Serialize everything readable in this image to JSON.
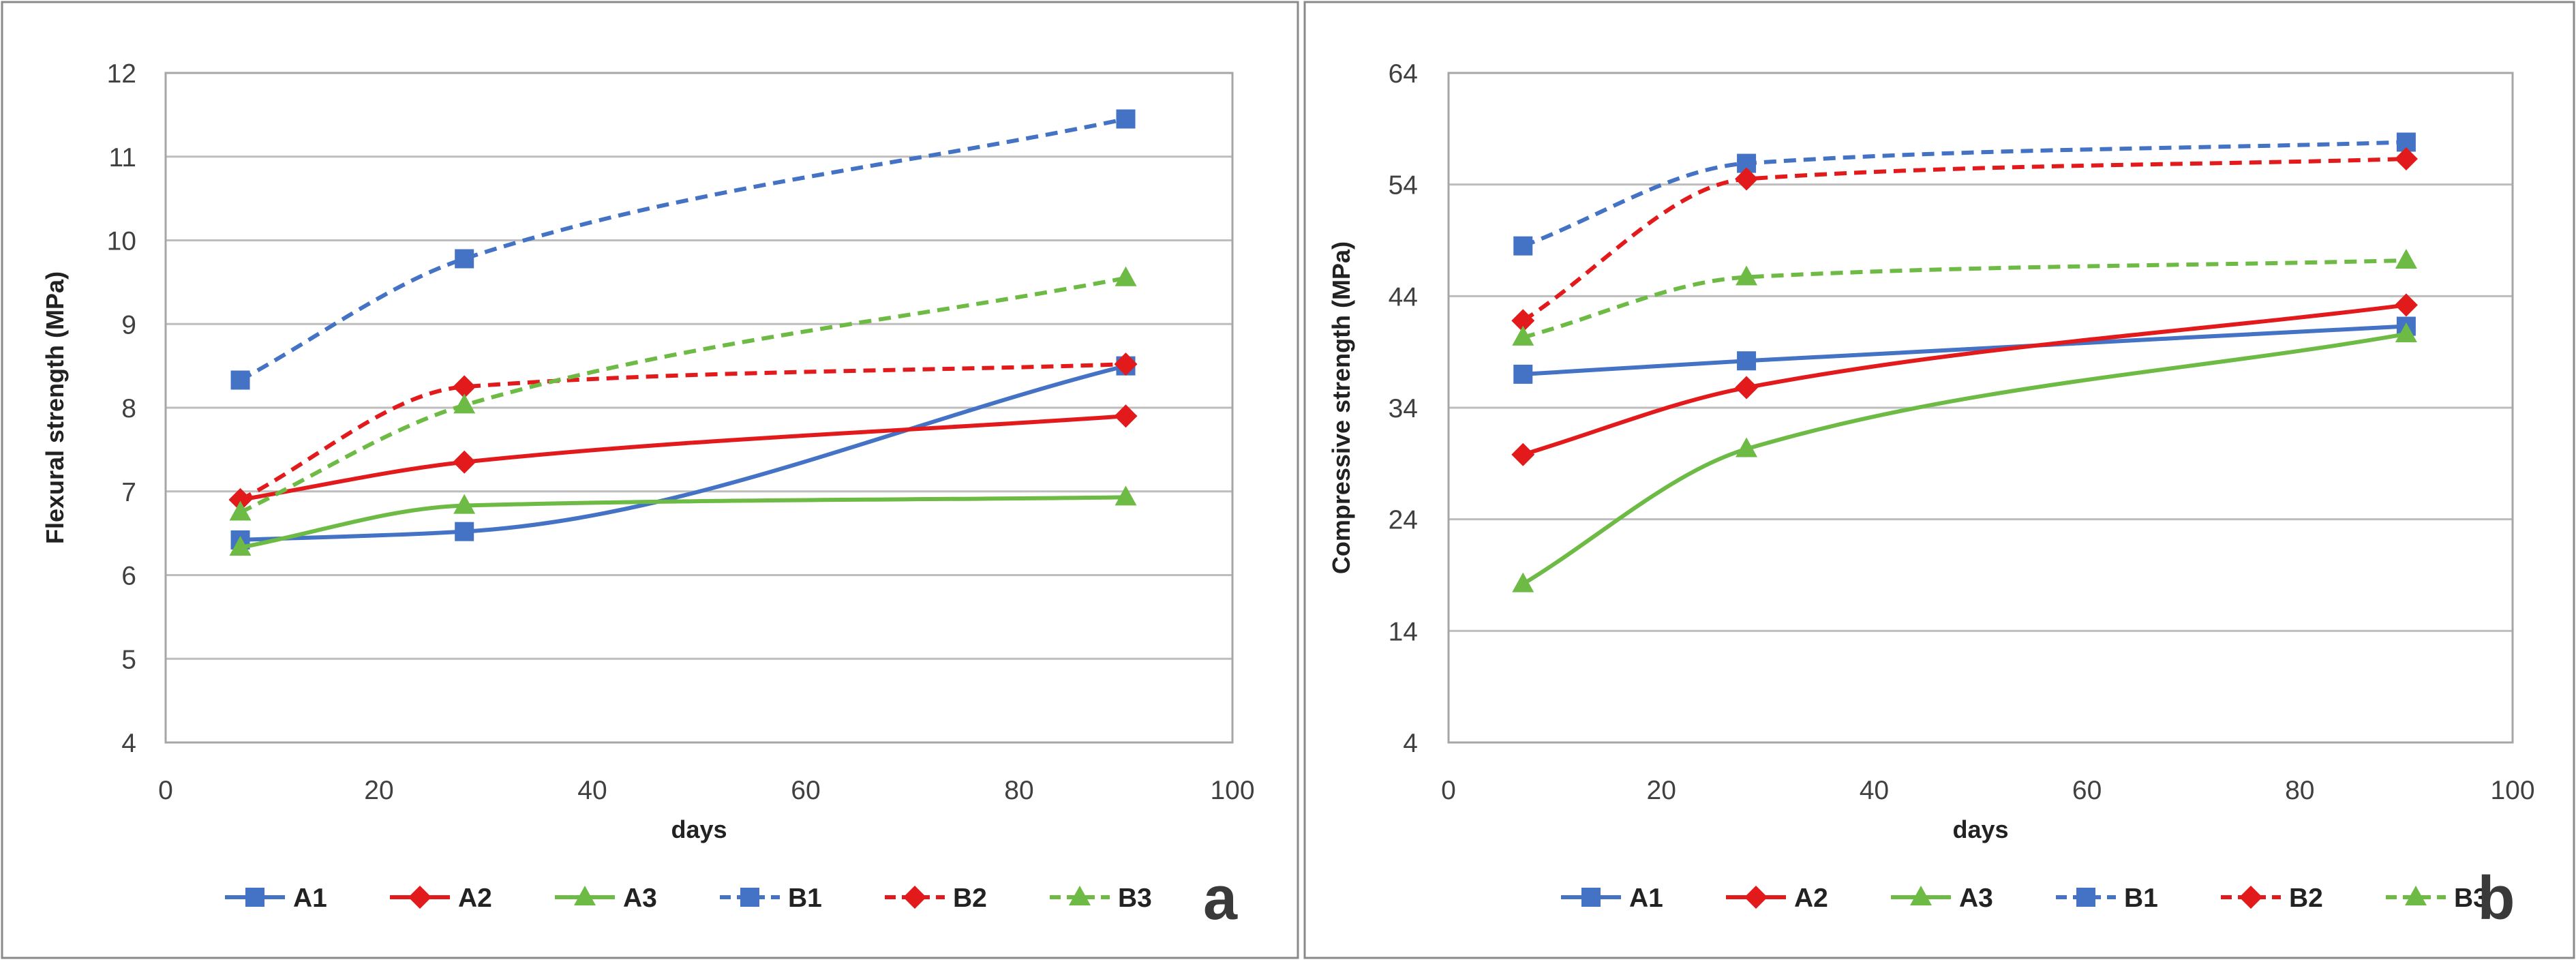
{
  "colors": {
    "blue": "#4472C4",
    "red": "#E31A1C",
    "green": "#6DBB45"
  },
  "chart_data": [
    {
      "type": "line",
      "panel": "a",
      "title": "",
      "xlabel": "days",
      "ylabel": "Flexural strength (MPa)",
      "xlim": [
        0,
        100
      ],
      "ylim": [
        4,
        12
      ],
      "xticks": [
        0,
        20,
        40,
        60,
        80,
        100
      ],
      "yticks": [
        4,
        5,
        6,
        7,
        8,
        9,
        10,
        11,
        12
      ],
      "grid": "horizontal",
      "legend_position": "bottom",
      "series": [
        {
          "name": "A1",
          "color": "blue",
          "dash": "solid",
          "marker": "square",
          "x": [
            7,
            28,
            90
          ],
          "values": [
            6.42,
            6.52,
            8.5
          ]
        },
        {
          "name": "A2",
          "color": "red",
          "dash": "solid",
          "marker": "diamond",
          "x": [
            7,
            28,
            90
          ],
          "values": [
            6.9,
            7.35,
            7.9
          ]
        },
        {
          "name": "A3",
          "color": "green",
          "dash": "solid",
          "marker": "triangle",
          "x": [
            7,
            28,
            90
          ],
          "values": [
            6.33,
            6.83,
            6.93
          ]
        },
        {
          "name": "B1",
          "color": "blue",
          "dash": "dashed",
          "marker": "square",
          "x": [
            7,
            28,
            90
          ],
          "values": [
            8.33,
            9.78,
            11.45
          ]
        },
        {
          "name": "B2",
          "color": "red",
          "dash": "dashed",
          "marker": "diamond",
          "x": [
            7,
            28,
            90
          ],
          "values": [
            6.9,
            8.25,
            8.52
          ]
        },
        {
          "name": "B3",
          "color": "green",
          "dash": "dashed",
          "marker": "triangle",
          "x": [
            7,
            28,
            90
          ],
          "values": [
            6.75,
            8.03,
            9.55
          ]
        }
      ]
    },
    {
      "type": "line",
      "panel": "b",
      "title": "",
      "xlabel": "days",
      "ylabel": "Compressive strength (MPa)",
      "xlim": [
        0,
        100
      ],
      "ylim": [
        4,
        64
      ],
      "xticks": [
        0,
        20,
        40,
        60,
        80,
        100
      ],
      "yticks": [
        4,
        14,
        24,
        34,
        44,
        54,
        64
      ],
      "grid": "horizontal",
      "legend_position": "bottom",
      "series": [
        {
          "name": "A1",
          "color": "blue",
          "dash": "solid",
          "marker": "square",
          "x": [
            7,
            28,
            90
          ],
          "values": [
            37.0,
            38.2,
            41.3
          ]
        },
        {
          "name": "A2",
          "color": "red",
          "dash": "solid",
          "marker": "diamond",
          "x": [
            7,
            28,
            90
          ],
          "values": [
            29.8,
            35.8,
            43.2
          ]
        },
        {
          "name": "A3",
          "color": "green",
          "dash": "solid",
          "marker": "triangle",
          "x": [
            7,
            28,
            90
          ],
          "values": [
            18.2,
            30.3,
            40.6
          ]
        },
        {
          "name": "B1",
          "color": "blue",
          "dash": "dashed",
          "marker": "square",
          "x": [
            7,
            28,
            90
          ],
          "values": [
            48.5,
            55.9,
            57.8
          ]
        },
        {
          "name": "B2",
          "color": "red",
          "dash": "dashed",
          "marker": "diamond",
          "x": [
            7,
            28,
            90
          ],
          "values": [
            41.8,
            54.5,
            56.3
          ]
        },
        {
          "name": "B3",
          "color": "green",
          "dash": "dashed",
          "marker": "triangle",
          "x": [
            7,
            28,
            90
          ],
          "values": [
            40.3,
            45.7,
            47.2
          ]
        }
      ]
    }
  ]
}
